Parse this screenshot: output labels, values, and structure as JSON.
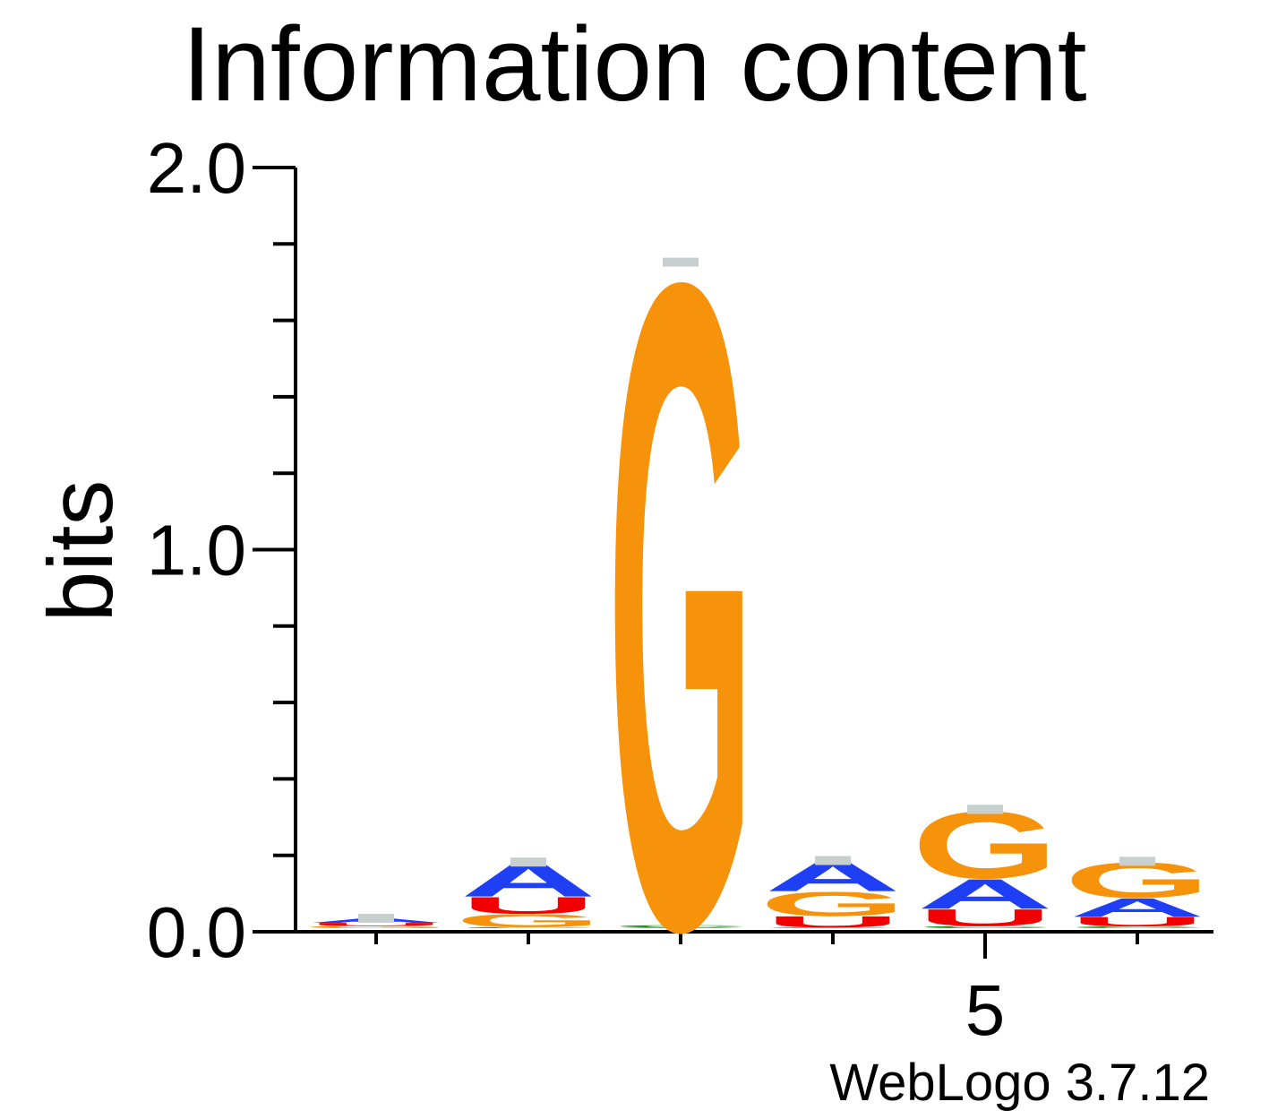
{
  "chart_data": {
    "type": "sequence-logo",
    "title": "Information content",
    "ylabel": "bits",
    "xlabel": "",
    "ylim": [
      0,
      2
    ],
    "y_ticks": [
      "0.0",
      "1.0",
      "2.0"
    ],
    "x_tick_labels": {
      "5": "5"
    },
    "credit": "WebLogo 3.7.12",
    "colors": {
      "A": "#1f3ff5",
      "U": "#f20000",
      "G": "#f7920b",
      "C": "#1c9a1c",
      "error_bar": "#c8cfcf"
    },
    "positions": [
      {
        "pos": 1,
        "stack": [
          {
            "letter": "G",
            "bits": 0.006
          },
          {
            "letter": "U",
            "bits": 0.008
          },
          {
            "letter": "A",
            "bits": 0.012
          }
        ],
        "error": 0.006
      },
      {
        "pos": 2,
        "stack": [
          {
            "letter": "C",
            "bits": 0.003
          },
          {
            "letter": "G",
            "bits": 0.035
          },
          {
            "letter": "U",
            "bits": 0.045
          },
          {
            "letter": "A",
            "bits": 0.09
          }
        ],
        "error": 0.008
      },
      {
        "pos": 3,
        "stack": [
          {
            "letter": "A",
            "bits": 0.002
          },
          {
            "letter": "C",
            "bits": 0.006
          },
          {
            "letter": "G",
            "bits": 1.735
          }
        ],
        "error": 0.008
      },
      {
        "pos": 4,
        "stack": [
          {
            "letter": "C",
            "bits": 0.002
          },
          {
            "letter": "U",
            "bits": 0.03
          },
          {
            "letter": "G",
            "bits": 0.065
          },
          {
            "letter": "A",
            "bits": 0.08
          }
        ],
        "error": 0.008
      },
      {
        "pos": 5,
        "stack": [
          {
            "letter": "C",
            "bits": 0.006
          },
          {
            "letter": "U",
            "bits": 0.045
          },
          {
            "letter": "A",
            "bits": 0.08
          },
          {
            "letter": "G",
            "bits": 0.18
          }
        ],
        "error": 0.01
      },
      {
        "pos": 6,
        "stack": [
          {
            "letter": "C",
            "bits": 0.005
          },
          {
            "letter": "U",
            "bits": 0.025
          },
          {
            "letter": "A",
            "bits": 0.05
          },
          {
            "letter": "G",
            "bits": 0.095
          }
        ],
        "error": 0.008
      }
    ]
  }
}
